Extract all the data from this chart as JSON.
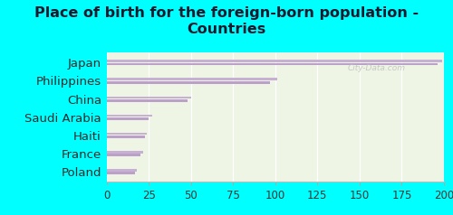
{
  "title": "Place of birth for the foreign-born population -\nCountries",
  "countries": [
    "Japan",
    "Philippines",
    "China",
    "Saudi Arabia",
    "Haiti",
    "France",
    "Poland"
  ],
  "values_top": [
    199,
    101,
    50,
    27,
    24,
    22,
    18
  ],
  "values_bottom": [
    196,
    97,
    48,
    25,
    23,
    20,
    17
  ],
  "bar_color_top": "#c8afd4",
  "bar_color_bottom": "#bba0c8",
  "bg_color": "#eef5e4",
  "outer_bg": "#00ffff",
  "title_color": "#1a1a2e",
  "xlim": [
    0,
    200
  ],
  "xticks": [
    0,
    25,
    50,
    75,
    100,
    125,
    150,
    175,
    200
  ],
  "title_fontsize": 11.5,
  "tick_fontsize": 8.5,
  "label_fontsize": 9.5,
  "watermark": "City-Data.com"
}
